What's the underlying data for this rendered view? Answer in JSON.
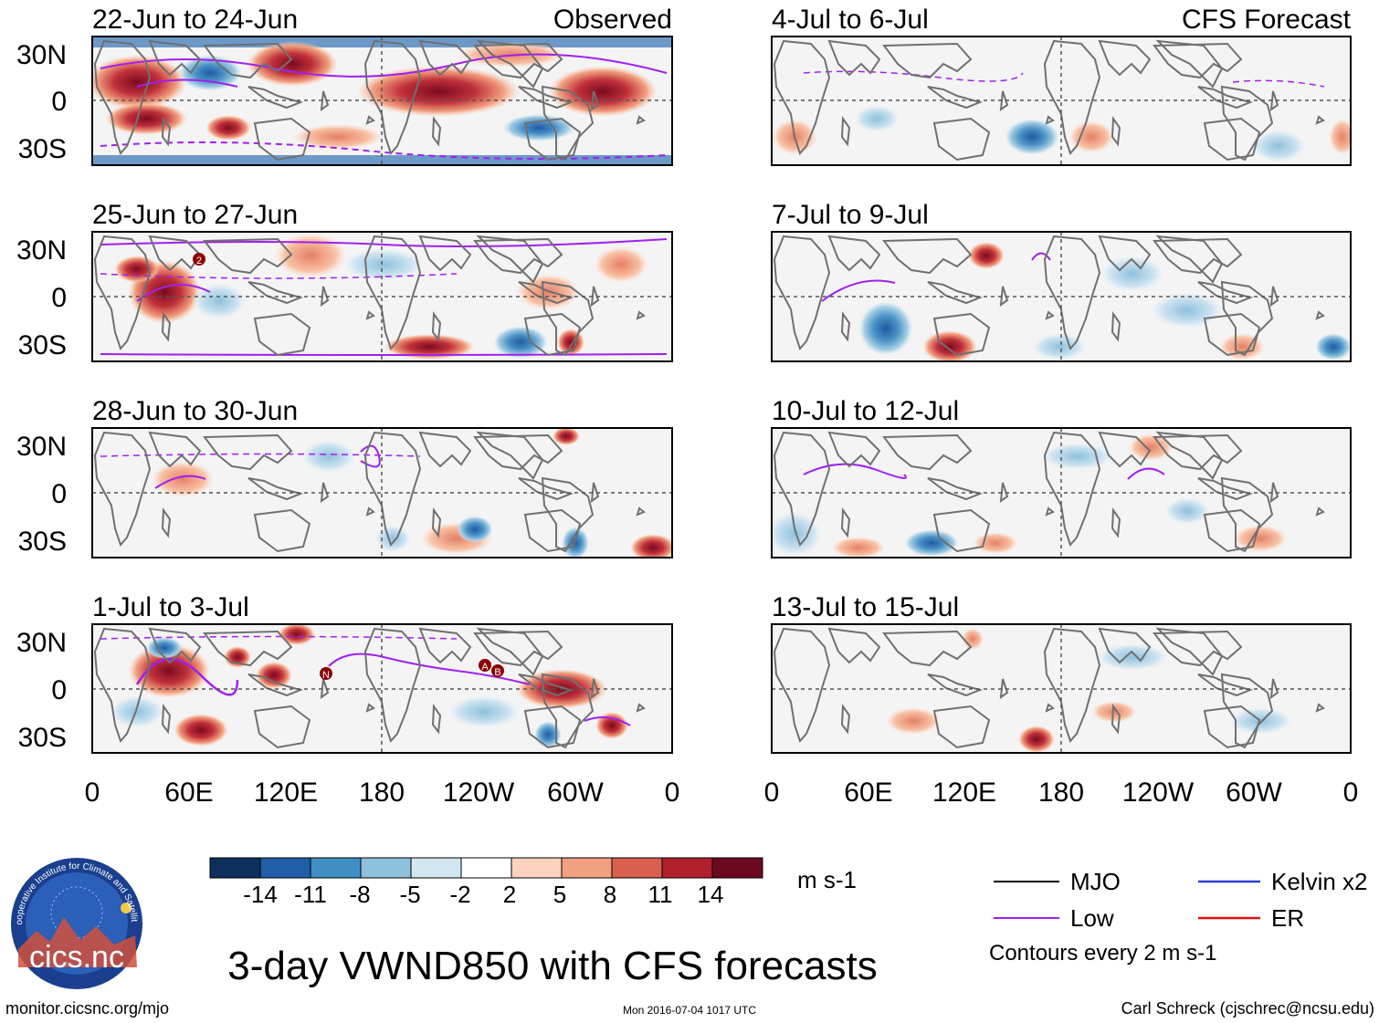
{
  "header": {
    "observed_label": "Observed",
    "forecast_label": "CFS Forecast"
  },
  "panels": {
    "left": [
      {
        "title": "22-Jun to 24-Jun"
      },
      {
        "title": "25-Jun to 27-Jun"
      },
      {
        "title": "28-Jun to 30-Jun"
      },
      {
        "title": "1-Jul to 3-Jul"
      }
    ],
    "right": [
      {
        "title": "4-Jul to 6-Jul"
      },
      {
        "title": "7-Jul to 9-Jul"
      },
      {
        "title": "10-Jul to 12-Jul"
      },
      {
        "title": "13-Jul to 15-Jul"
      }
    ]
  },
  "axes": {
    "lat_labels": [
      "30N",
      "0",
      "30S"
    ],
    "lon_labels": [
      "0",
      "60E",
      "120E",
      "180",
      "120W",
      "60W",
      "0"
    ]
  },
  "colorbar": {
    "colors": [
      "#0d2f5e",
      "#205ea8",
      "#3f8fc4",
      "#8ec1de",
      "#d2e6f1",
      "#ffffff",
      "#fbd2bd",
      "#f2a07f",
      "#d9604f",
      "#b3202d",
      "#6b0a1f"
    ],
    "tick_labels": [
      "-14",
      "-11",
      "-8",
      "-5",
      "-2",
      "2",
      "5",
      "8",
      "11",
      "14"
    ],
    "units": "m s-1"
  },
  "legend": {
    "items": [
      {
        "label": "MJO",
        "color": "#000000"
      },
      {
        "label": "Kelvin x2",
        "color": "#2a3fd6"
      },
      {
        "label": "Low",
        "color": "#a020f0"
      },
      {
        "label": "ER",
        "color": "#e01010"
      }
    ],
    "note": "Contours every 2 m s-1"
  },
  "logo": {
    "text": "cics.nc",
    "ring_text": "Cooperative Institute for Climate and Satellites"
  },
  "footer": {
    "main_title": "3-day VWND850 with CFS forecasts",
    "url": "monitor.cicsnc.org/mjo",
    "timestamp": "Mon 2016-07-04 1017 UTC",
    "credit": "Carl Schreck (cjschrec@ncsu.edu)"
  },
  "storm_labels": [
    "2",
    "N",
    "A",
    "B"
  ]
}
